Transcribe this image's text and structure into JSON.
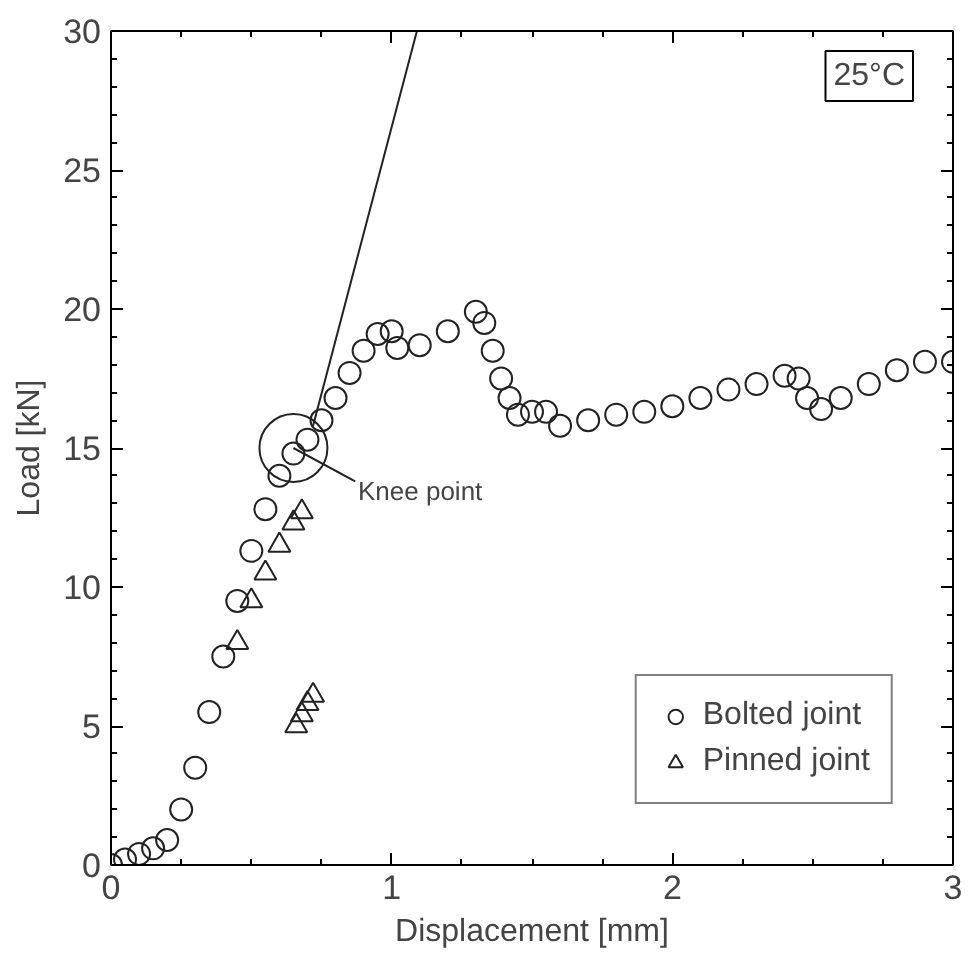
{
  "chart_data": {
    "type": "scatter",
    "xlabel": "Displacement [mm]",
    "ylabel": "Load [kN]",
    "xlim": [
      0,
      3
    ],
    "ylim": [
      0,
      30
    ],
    "xticks": [
      0,
      1,
      2,
      3
    ],
    "yticks": [
      0,
      5,
      10,
      15,
      20,
      25,
      30
    ],
    "grid": false,
    "legend": "bottom right",
    "series": [
      {
        "name": "Bolted joint",
        "color": "#222222",
        "marker": "circle",
        "x": [
          0,
          0.05,
          0.1,
          0.15,
          0.2,
          0.25,
          0.3,
          0.35,
          0.4,
          0.45,
          0.5,
          0.55,
          0.6,
          0.65,
          0.7,
          0.75,
          0.8,
          0.85,
          0.9,
          0.95,
          1.0,
          1.02,
          1.1,
          1.2,
          1.3,
          1.33,
          1.36,
          1.39,
          1.42,
          1.45,
          1.5,
          1.55,
          1.6,
          1.7,
          1.8,
          1.9,
          2.0,
          2.1,
          2.2,
          2.3,
          2.4,
          2.45,
          2.48,
          2.53,
          2.6,
          2.7,
          2.8,
          2.9,
          3.0
        ],
        "values": [
          0,
          0.2,
          0.4,
          0.6,
          0.9,
          2,
          3.5,
          5.5,
          7.5,
          9.5,
          11.3,
          12.8,
          14,
          14.8,
          15.3,
          16,
          16.8,
          17.7,
          18.5,
          19.1,
          19.2,
          18.6,
          18.7,
          19.2,
          19.9,
          19.5,
          18.5,
          17.5,
          16.8,
          16.2,
          16.3,
          16.3,
          15.8,
          16,
          16.2,
          16.3,
          16.5,
          16.8,
          17.1,
          17.3,
          17.6,
          17.5,
          16.8,
          16.4,
          16.8,
          17.3,
          17.8,
          18.1,
          18.1
        ]
      },
      {
        "name": "Pinned joint",
        "color": "#222222",
        "marker": "triangle",
        "x": [
          0.45,
          0.5,
          0.55,
          0.6,
          0.65,
          0.68,
          0.66,
          0.68,
          0.7,
          0.72
        ],
        "values": [
          8,
          9.5,
          10.5,
          11.5,
          12.3,
          12.7,
          5,
          5.4,
          5.8,
          6.1
        ]
      },
      {
        "type": "line",
        "color": "#222222",
        "x": [
          0.72,
          1.09
        ],
        "values": [
          15.8,
          30
        ]
      }
    ],
    "annotations": [
      {
        "text": "Knee point",
        "x": 0.65,
        "y": 15
      },
      "25°C"
    ]
  }
}
